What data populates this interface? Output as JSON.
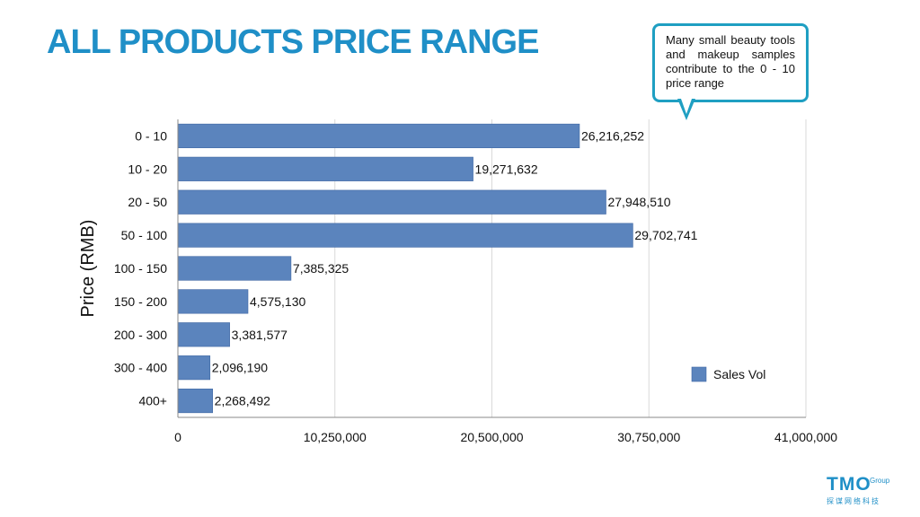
{
  "title": "ALL PRODUCTS PRICE RANGE",
  "callout": {
    "text": "Many small beauty tools and makeup samples contribute to the 0 - 10 price range"
  },
  "logo": {
    "main": "TMO",
    "sup": "Group",
    "sub": "探谋网络科技"
  },
  "colors": {
    "title": "#1f8fc7",
    "bar": "#5b84bd",
    "bar_stroke": "#3f67a3",
    "callout_border": "#1f9fc2",
    "grid": "#d9d9d9"
  },
  "chart_data": {
    "type": "bar",
    "orientation": "horizontal",
    "title": "ALL PRODUCTS PRICE RANGE",
    "ylabel": "Price (RMB)",
    "xlabel": "",
    "categories": [
      "0 - 10",
      "10 - 20",
      "20 - 50",
      "50 - 100",
      "100 - 150",
      "150 - 200",
      "200 - 300",
      "300 - 400",
      "400+"
    ],
    "series": [
      {
        "name": "Sales Vol",
        "values": [
          26216252,
          19271632,
          27948510,
          29702741,
          7385325,
          4575130,
          3381577,
          2096190,
          2268492
        ]
      }
    ],
    "data_labels": [
      "26,216,252",
      "19,271,632",
      "27,948,510",
      "29,702,741",
      "7,385,325",
      "4,575,130",
      "3,381,577",
      "2,096,190",
      "2,268,492"
    ],
    "xlim": [
      0,
      41000000
    ],
    "xticks": [
      0,
      10250000,
      20500000,
      30750000,
      41000000
    ],
    "xtick_labels": [
      "0",
      "10,250,000",
      "20,500,000",
      "30,750,000",
      "41,000,000"
    ],
    "grid": true,
    "legend": "bottom-right"
  }
}
